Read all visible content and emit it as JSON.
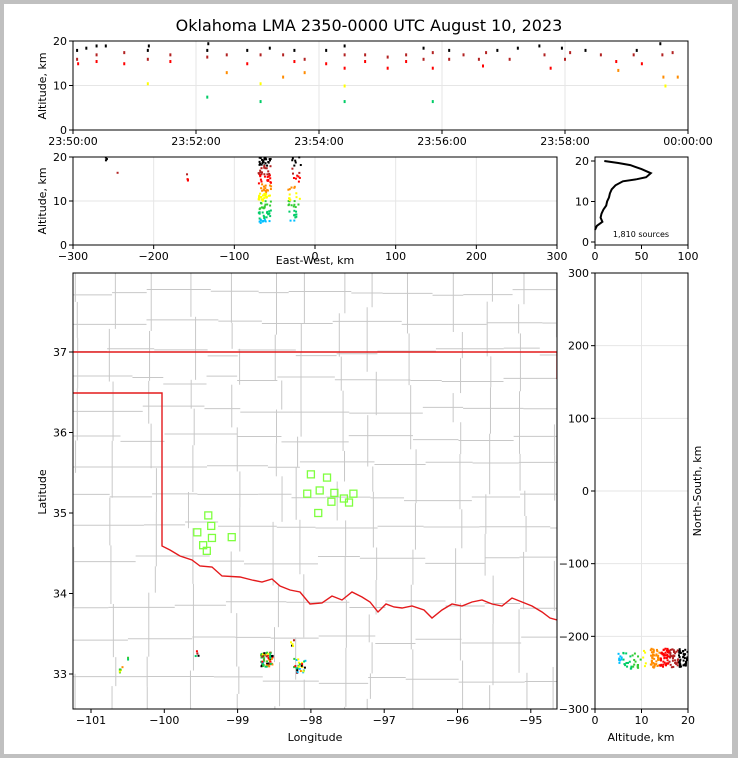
{
  "title": "Oklahoma LMA 2350-0000 UTC August 10, 2023",
  "colors": {
    "state_border": "#e41a1c",
    "county_lines": "#c8c8c8",
    "stations": "#7fff3f",
    "histogram": "#000000",
    "source_palette": [
      "#00008b",
      "#0000ff",
      "#00bfff",
      "#00cc66",
      "#33cc33",
      "#ffff00",
      "#ff8c00",
      "#ff0000",
      "#b22222",
      "#000000"
    ]
  },
  "chart_data": [
    {
      "id": "time_height",
      "type": "scatter",
      "title": "",
      "xlabel": "",
      "ylabel": "Altitude, km",
      "xlim": [
        "23:50:00",
        "00:00:00"
      ],
      "ylim": [
        0,
        20
      ],
      "x_ticks": [
        "23:50:00",
        "23:52:00",
        "23:54:00",
        "23:56:00",
        "23:58:00",
        "00:00:00"
      ],
      "y_ticks": [
        "0",
        "10",
        "20"
      ],
      "grid": true,
      "points": [
        {
          "t": 0.4,
          "alt": 16
        },
        {
          "t": 0.4,
          "alt": 18
        },
        {
          "t": 0.5,
          "alt": 15
        },
        {
          "t": 1.3,
          "alt": 18.5
        },
        {
          "t": 2.3,
          "alt": 17
        },
        {
          "t": 2.3,
          "alt": 15.5
        },
        {
          "t": 2.3,
          "alt": 19
        },
        {
          "t": 3.2,
          "alt": 19
        },
        {
          "t": 5.0,
          "alt": 17.5
        },
        {
          "t": 5.0,
          "alt": 15
        },
        {
          "t": 7.3,
          "alt": 18
        },
        {
          "t": 7.3,
          "alt": 16
        },
        {
          "t": 7.3,
          "alt": 10.5
        },
        {
          "t": 7.4,
          "alt": 19
        },
        {
          "t": 9.5,
          "alt": 17
        },
        {
          "t": 9.5,
          "alt": 15.5
        },
        {
          "t": 13.1,
          "alt": 18
        },
        {
          "t": 13.2,
          "alt": 19.5
        },
        {
          "t": 13.1,
          "alt": 16.5
        },
        {
          "t": 13.1,
          "alt": 7.5
        },
        {
          "t": 15.0,
          "alt": 17
        },
        {
          "t": 15.0,
          "alt": 13
        },
        {
          "t": 17.0,
          "alt": 18
        },
        {
          "t": 17.0,
          "alt": 15
        },
        {
          "t": 18.3,
          "alt": 17
        },
        {
          "t": 18.3,
          "alt": 10.5
        },
        {
          "t": 18.3,
          "alt": 6.5
        },
        {
          "t": 19.2,
          "alt": 18.5
        },
        {
          "t": 20.5,
          "alt": 17
        },
        {
          "t": 20.5,
          "alt": 12
        },
        {
          "t": 21.6,
          "alt": 18
        },
        {
          "t": 21.6,
          "alt": 15.5
        },
        {
          "t": 22.6,
          "alt": 16
        },
        {
          "t": 22.6,
          "alt": 13
        },
        {
          "t": 24.7,
          "alt": 18
        },
        {
          "t": 24.7,
          "alt": 15
        },
        {
          "t": 26.5,
          "alt": 17
        },
        {
          "t": 26.5,
          "alt": 19
        },
        {
          "t": 26.5,
          "alt": 14
        },
        {
          "t": 26.5,
          "alt": 10
        },
        {
          "t": 26.5,
          "alt": 6.5
        },
        {
          "t": 28.5,
          "alt": 17
        },
        {
          "t": 28.5,
          "alt": 15.5
        },
        {
          "t": 30.7,
          "alt": 16.5
        },
        {
          "t": 30.7,
          "alt": 14
        },
        {
          "t": 32.5,
          "alt": 17
        },
        {
          "t": 32.5,
          "alt": 15.5
        },
        {
          "t": 34.2,
          "alt": 18.5
        },
        {
          "t": 34.2,
          "alt": 16
        },
        {
          "t": 35.1,
          "alt": 17.5
        },
        {
          "t": 35.1,
          "alt": 14
        },
        {
          "t": 35.1,
          "alt": 6.5
        },
        {
          "t": 36.7,
          "alt": 18
        },
        {
          "t": 36.7,
          "alt": 16
        },
        {
          "t": 38.1,
          "alt": 17
        },
        {
          "t": 39.6,
          "alt": 16
        },
        {
          "t": 40.0,
          "alt": 14.5
        },
        {
          "t": 40.3,
          "alt": 17.5
        },
        {
          "t": 41.4,
          "alt": 18
        },
        {
          "t": 42.6,
          "alt": 16
        },
        {
          "t": 43.4,
          "alt": 18.5
        },
        {
          "t": 45.5,
          "alt": 19
        },
        {
          "t": 46.0,
          "alt": 17
        },
        {
          "t": 46.6,
          "alt": 14
        },
        {
          "t": 47.7,
          "alt": 18.5
        },
        {
          "t": 48.0,
          "alt": 16
        },
        {
          "t": 48.5,
          "alt": 17.5
        },
        {
          "t": 50.0,
          "alt": 18
        },
        {
          "t": 51.5,
          "alt": 17
        },
        {
          "t": 53.0,
          "alt": 15.5
        },
        {
          "t": 53.2,
          "alt": 13.5
        },
        {
          "t": 54.7,
          "alt": 17
        },
        {
          "t": 55.0,
          "alt": 18
        },
        {
          "t": 55.5,
          "alt": 15
        },
        {
          "t": 57.3,
          "alt": 19.5
        },
        {
          "t": 57.5,
          "alt": 17
        },
        {
          "t": 57.6,
          "alt": 12
        },
        {
          "t": 57.8,
          "alt": 10
        },
        {
          "t": 58.5,
          "alt": 17.5
        },
        {
          "t": 59.0,
          "alt": 12
        }
      ]
    },
    {
      "id": "ew_altitude",
      "type": "scatter",
      "title": "",
      "xlabel": "East-West, km",
      "ylabel": "Altitude, km",
      "xlim": [
        -300,
        300
      ],
      "ylim": [
        0,
        20
      ],
      "x_ticks": [
        "−300",
        "−200",
        "−100",
        "0",
        "100",
        "200",
        "300"
      ],
      "y_ticks": [
        "0",
        "10",
        "20"
      ],
      "grid": true,
      "clusters": [
        {
          "x": -258,
          "alt_range": [
            19,
            20
          ],
          "n": 4
        },
        {
          "x": -245,
          "alt_range": [
            16,
            17
          ],
          "n": 1
        },
        {
          "x": -158,
          "alt_range": [
            14.5,
            16.5
          ],
          "n": 4
        },
        {
          "x": -62,
          "alt_range": [
            5,
            20
          ],
          "n": 140
        },
        {
          "x": -25,
          "alt_range": [
            5.5,
            20
          ],
          "n": 50
        }
      ]
    },
    {
      "id": "altitude_histogram",
      "type": "line",
      "title": "",
      "xlabel": "",
      "ylabel": "",
      "xlim": [
        0,
        100
      ],
      "ylim": [
        0,
        20
      ],
      "x_ticks": [
        "0",
        "50",
        "100"
      ],
      "y_ticks": [
        "0",
        "10",
        "20"
      ],
      "annotation": "1,810 sources",
      "profile": [
        [
          0,
          3
        ],
        [
          2,
          4
        ],
        [
          8,
          5
        ],
        [
          6,
          6
        ],
        [
          7,
          7
        ],
        [
          9,
          8
        ],
        [
          12,
          9
        ],
        [
          13,
          10
        ],
        [
          15,
          11
        ],
        [
          16,
          12
        ],
        [
          18,
          13
        ],
        [
          22,
          14
        ],
        [
          30,
          15
        ],
        [
          45,
          15.5
        ],
        [
          55,
          16
        ],
        [
          60,
          17
        ],
        [
          50,
          18
        ],
        [
          38,
          19
        ],
        [
          25,
          19.5
        ],
        [
          10,
          20
        ]
      ]
    },
    {
      "id": "plan_view",
      "type": "scatter",
      "title": "",
      "xlabel": "Longitude",
      "ylabel": "Latitude",
      "xlim": [
        -101.2,
        -94.6
      ],
      "ylim": [
        32.55,
        38.0
      ],
      "x_ticks": [
        "−101",
        "−100",
        "−99",
        "−98",
        "−97",
        "−96",
        "−95"
      ],
      "y_ticks": [
        "33",
        "34",
        "35",
        "36",
        "37"
      ],
      "grid": true,
      "stations": [
        [
          -98.0,
          35.48
        ],
        [
          -97.78,
          35.44
        ],
        [
          -97.88,
          35.28
        ],
        [
          -98.05,
          35.24
        ],
        [
          -97.68,
          35.25
        ],
        [
          -97.55,
          35.18
        ],
        [
          -97.42,
          35.24
        ],
        [
          -97.72,
          35.14
        ],
        [
          -97.48,
          35.13
        ],
        [
          -97.9,
          35.0
        ],
        [
          -99.4,
          34.97
        ],
        [
          -99.36,
          34.84
        ],
        [
          -99.55,
          34.76
        ],
        [
          -99.35,
          34.69
        ],
        [
          -99.08,
          34.7
        ],
        [
          -99.47,
          34.6
        ],
        [
          -99.42,
          34.53
        ]
      ],
      "source_clusters": [
        {
          "lon": -98.6,
          "lat": 33.18,
          "n": 70
        },
        {
          "lon": -98.15,
          "lat": 33.1,
          "n": 30
        },
        {
          "lon": -98.25,
          "lat": 33.38,
          "n": 5
        },
        {
          "lon": -99.55,
          "lat": 33.25,
          "n": 4
        },
        {
          "lon": -100.6,
          "lat": 33.05,
          "n": 6
        },
        {
          "lon": -100.5,
          "lat": 33.18,
          "n": 2
        }
      ]
    },
    {
      "id": "altitude_ns",
      "type": "scatter",
      "title": "",
      "xlabel": "Altitude, km",
      "ylabel": "North-South, km",
      "xlim": [
        0,
        20
      ],
      "ylim": [
        -300,
        300
      ],
      "x_ticks": [
        "0",
        "10",
        "20"
      ],
      "y_ticks": [
        "−300",
        "−200",
        "−100",
        "0",
        "100",
        "200",
        "300"
      ],
      "grid": true,
      "clusters": [
        {
          "alt": 16,
          "ns": -230,
          "n": 160
        },
        {
          "alt": 8,
          "ns": -232,
          "n": 40
        }
      ]
    }
  ]
}
